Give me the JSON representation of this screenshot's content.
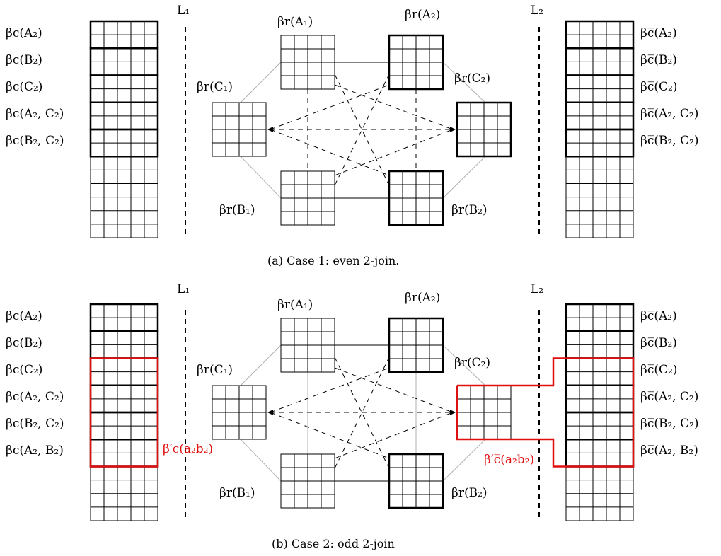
{
  "panels": [
    {
      "caption": "(a) Case 1: even 2-join.",
      "left_lines_label": "L₁",
      "right_lines_label": "L₂",
      "left_labels": [
        "βc(A₂)",
        "βc(B₂)",
        "βc(C₂)",
        "βc(A₂, C₂)",
        "βc(B₂, C₂)"
      ],
      "right_labels": [
        "βc̅(A₂)",
        "βc̅(B₂)",
        "βc̅(C₂)",
        "βc̅(A₂, C₂)",
        "βc̅(B₂, C₂)"
      ],
      "center_labels": {
        "a1": "βr(A₁)",
        "a2": "βr(A₂)",
        "c1": "βr(C₁)",
        "c2": "βr(C₂)",
        "b1": "βr(B₁)",
        "b2": "βr(B₂)"
      }
    },
    {
      "caption": "(b) Case 2: odd 2-join",
      "left_lines_label": "L₁",
      "right_lines_label": "L₂",
      "left_labels": [
        "βc(A₂)",
        "βc(B₂)",
        "βc(C₂)",
        "βc(A₂, C₂)",
        "βc(B₂, C₂)",
        "βc(A₂, B₂)"
      ],
      "right_labels": [
        "βc̅(A₂)",
        "βc̅(B₂)",
        "βc̅(C₂)",
        "βc̅(A₂, C₂)",
        "βc̅(B₂, C₂)",
        "βc̅(A₂, B₂)"
      ],
      "center_labels": {
        "a1": "βr(A₁)",
        "a2": "βr(A₂)",
        "c1": "βr(C₁)",
        "c2": "βr(C₂)",
        "b1": "βr(B₁)",
        "b2": "βr(B₂)"
      },
      "red_left_label": "β′c(a₂b₂)",
      "red_right_label": "β′c̅(a₂b₂)"
    }
  ],
  "colors": {
    "highlight": "#e01010",
    "line": "#000000",
    "light_edge": "#b0b0b0"
  }
}
